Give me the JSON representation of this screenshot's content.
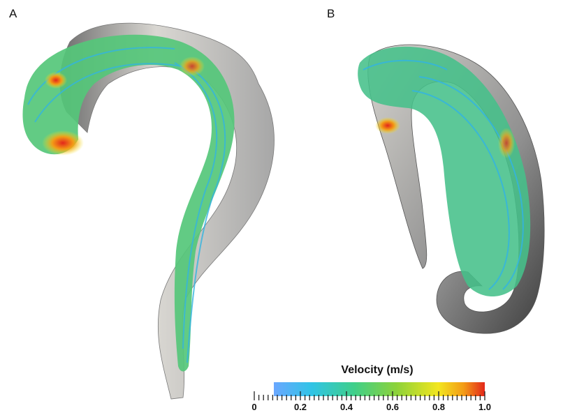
{
  "panels": [
    {
      "label": "A"
    },
    {
      "label": "B"
    }
  ],
  "legend": {
    "title": "Velocity (m/s)",
    "ticks": [
      "0",
      "0.2",
      "0.4",
      "0.6",
      "0.8",
      "1.0"
    ],
    "colormap": [
      "#6aa7ff",
      "#30c4e6",
      "#3fcf8a",
      "#8cd23a",
      "#f3e61f",
      "#f39b16",
      "#e3261b"
    ]
  }
}
